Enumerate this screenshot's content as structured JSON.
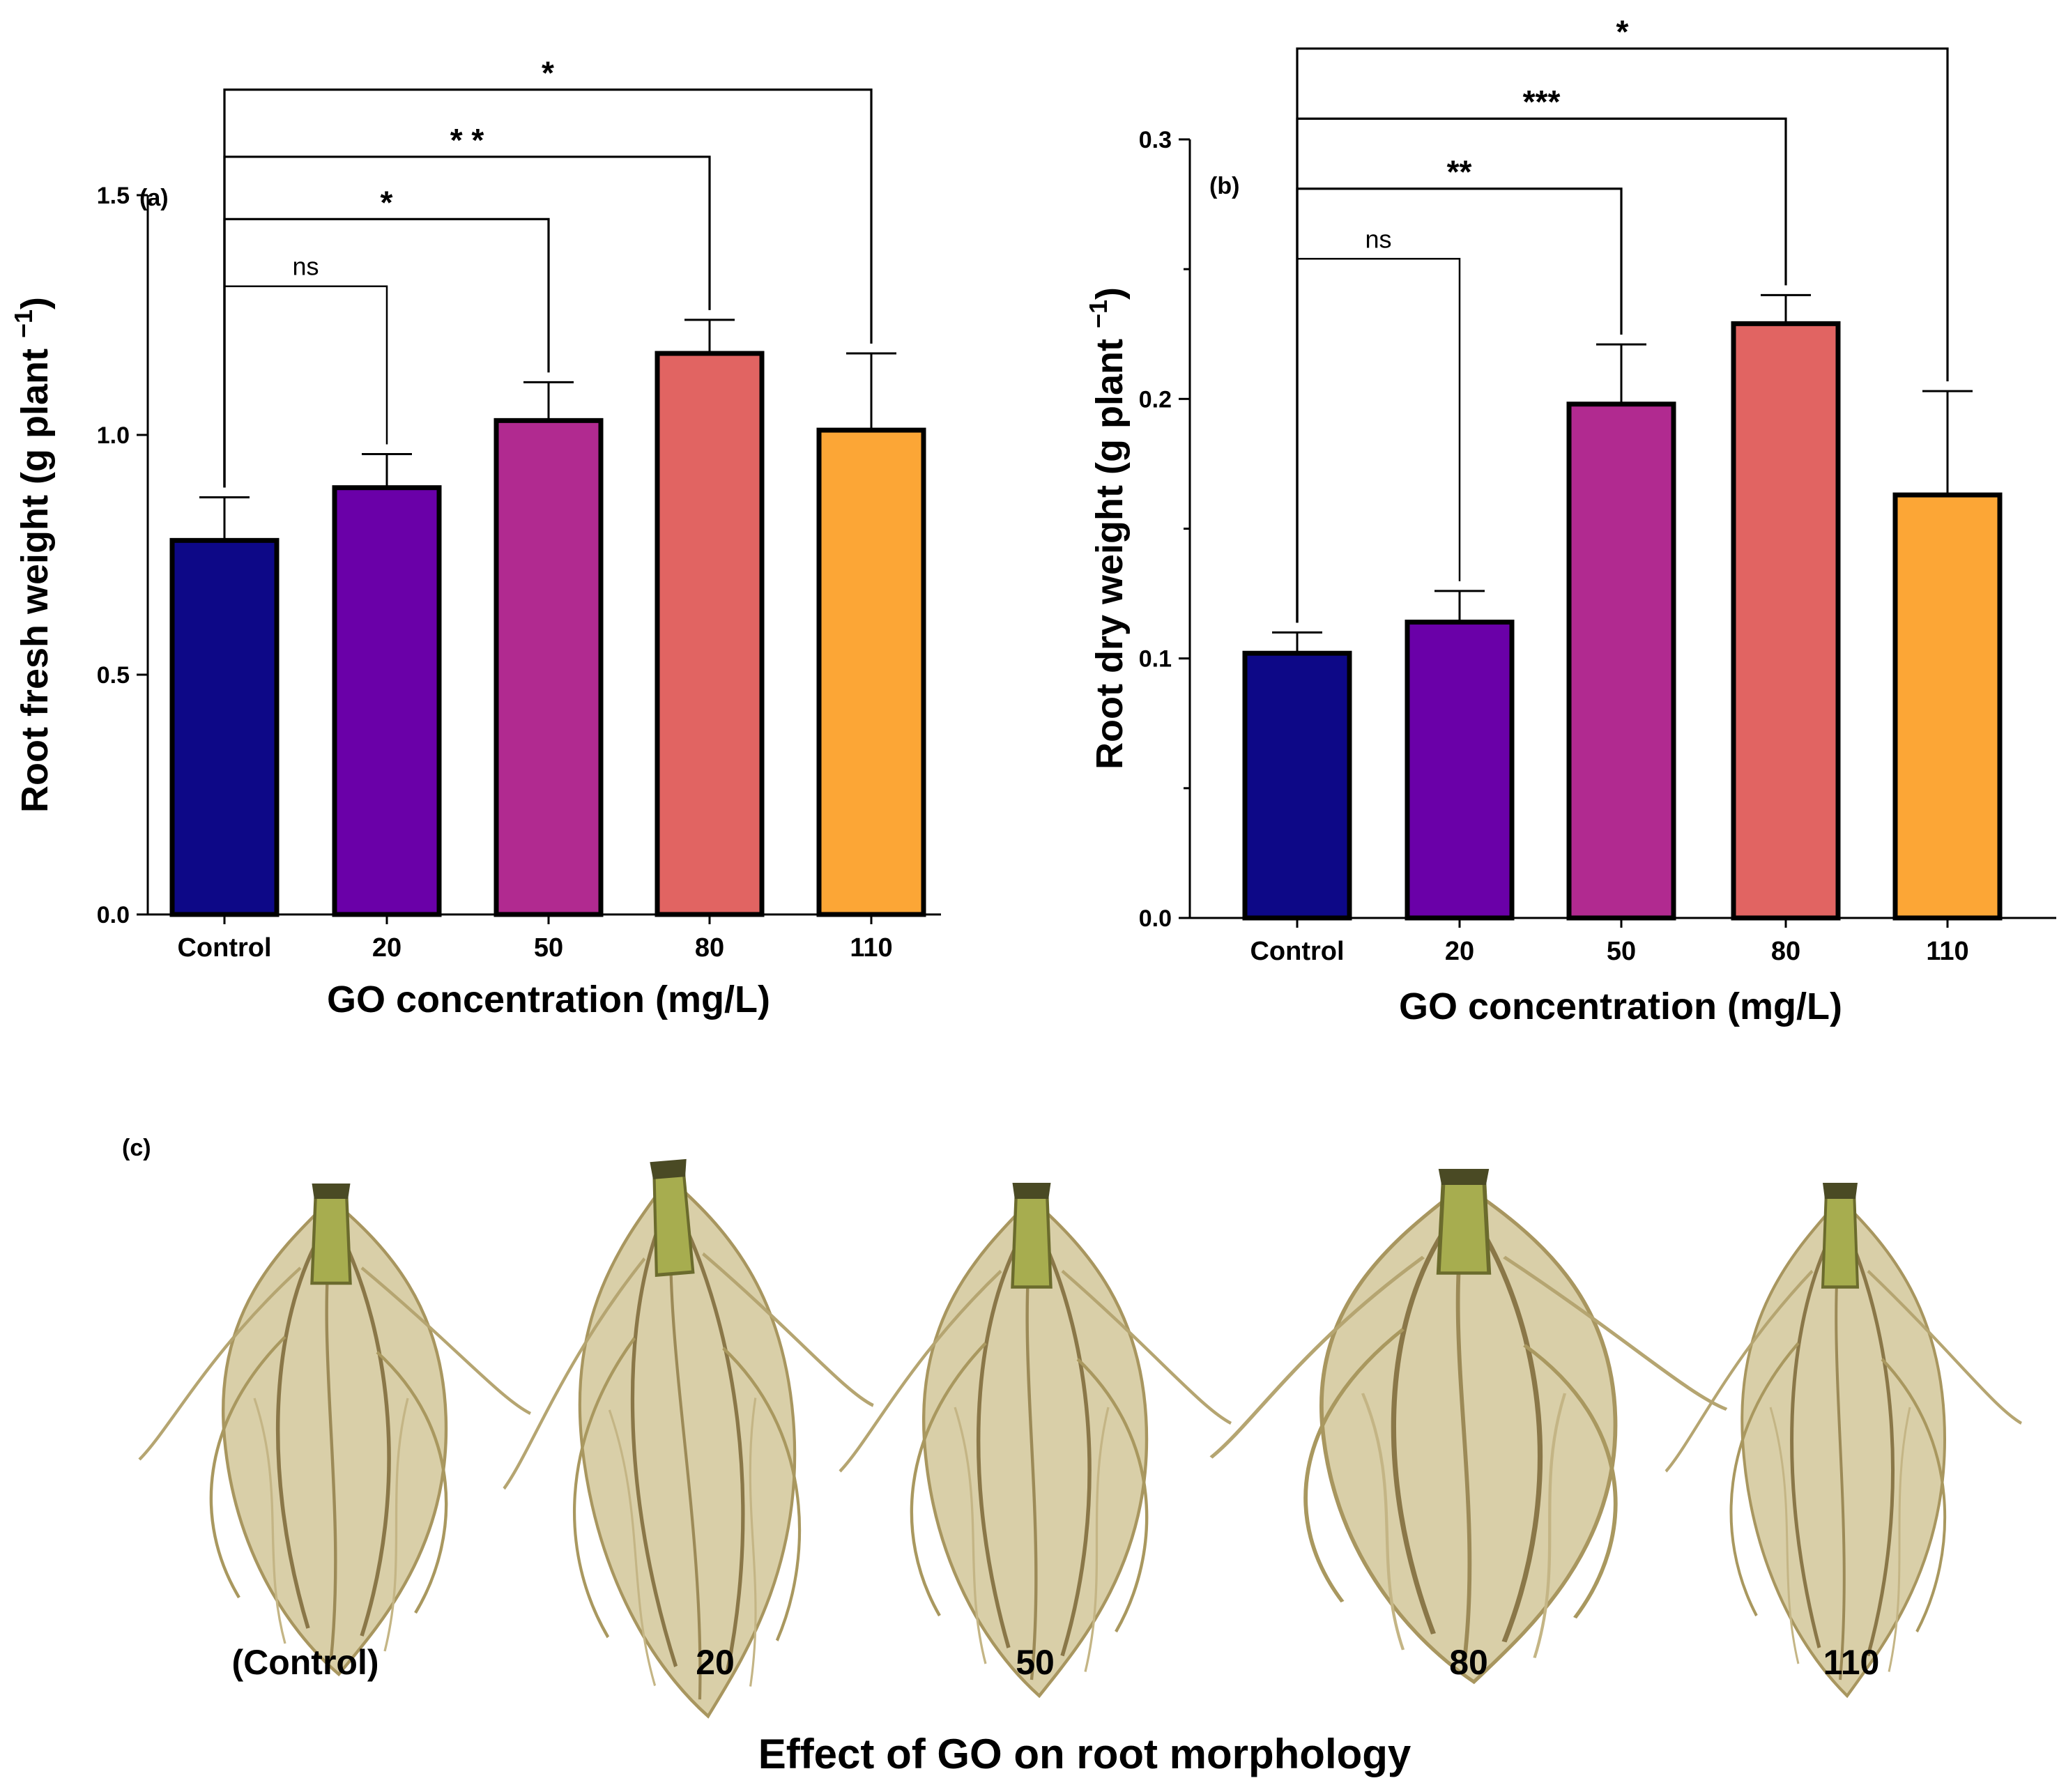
{
  "colors": {
    "bars": [
      "#0d0887",
      "#6a00a8",
      "#b12a90",
      "#e16462",
      "#fca636"
    ],
    "axis": "#000000",
    "background": "#ffffff",
    "root_light": "#d9cfa8",
    "root_mid": "#bfae7a",
    "root_dark": "#7d6a3c",
    "stem": "#a7ad4f"
  },
  "chart_data": [
    {
      "type": "bar",
      "panel_label": "(a)",
      "categories": [
        "Control",
        "20",
        "50",
        "80",
        "110"
      ],
      "values": [
        0.78,
        0.89,
        1.03,
        1.17,
        1.01
      ],
      "errors": [
        0.09,
        0.07,
        0.08,
        0.07,
        0.16
      ],
      "xlabel": "GO concentration (mg/L)",
      "ylabel": "Root fresh weight (g plant ",
      "ylabel_sup": "−1",
      "ylabel_close": ")",
      "ylim": [
        0,
        1.5
      ],
      "yticks": [
        0,
        0.5,
        1.0,
        1.5
      ],
      "ytick_labels": [
        "0.0",
        "0.5",
        "1.0",
        "1.5"
      ],
      "grid": false,
      "significance": [
        {
          "from": 0,
          "to": 1,
          "label": "ns",
          "bracket_value": 1.31
        },
        {
          "from": 0,
          "to": 2,
          "label": "*",
          "bracket_value": 1.45
        },
        {
          "from": 0,
          "to": 3,
          "label": "* *",
          "bracket_value": 1.58
        },
        {
          "from": 0,
          "to": 4,
          "label": "*",
          "bracket_value": 1.72
        }
      ]
    },
    {
      "type": "bar",
      "panel_label": "(b)",
      "categories": [
        "Control",
        "20",
        "50",
        "80",
        "110"
      ],
      "values": [
        0.102,
        0.114,
        0.198,
        0.229,
        0.163
      ],
      "errors": [
        0.008,
        0.012,
        0.023,
        0.011,
        0.04
      ],
      "xlabel": "GO concentration (mg/L)",
      "ylabel": "Root dry weight (g plant ",
      "ylabel_sup": "−1",
      "ylabel_close": ")",
      "ylim": [
        0,
        0.3
      ],
      "yticks": [
        0,
        0.1,
        0.2,
        0.3
      ],
      "ytick_labels": [
        "0.0",
        "0.1",
        "0.2",
        "0.3"
      ],
      "minor_yticks": [
        0.05,
        0.15,
        0.25
      ],
      "grid": false,
      "significance": [
        {
          "from": 0,
          "to": 1,
          "label": "ns",
          "bracket_value": 0.254
        },
        {
          "from": 0,
          "to": 2,
          "label": "**",
          "bracket_value": 0.281
        },
        {
          "from": 0,
          "to": 3,
          "label": "***",
          "bracket_value": 0.308
        },
        {
          "from": 0,
          "to": 4,
          "label": "*",
          "bracket_value": 0.335
        }
      ]
    }
  ],
  "photos": {
    "panel_label": "(c)",
    "labels": [
      "(Control)",
      "20",
      "50",
      "80",
      "110"
    ],
    "caption": "Effect of GO on root morphology"
  }
}
